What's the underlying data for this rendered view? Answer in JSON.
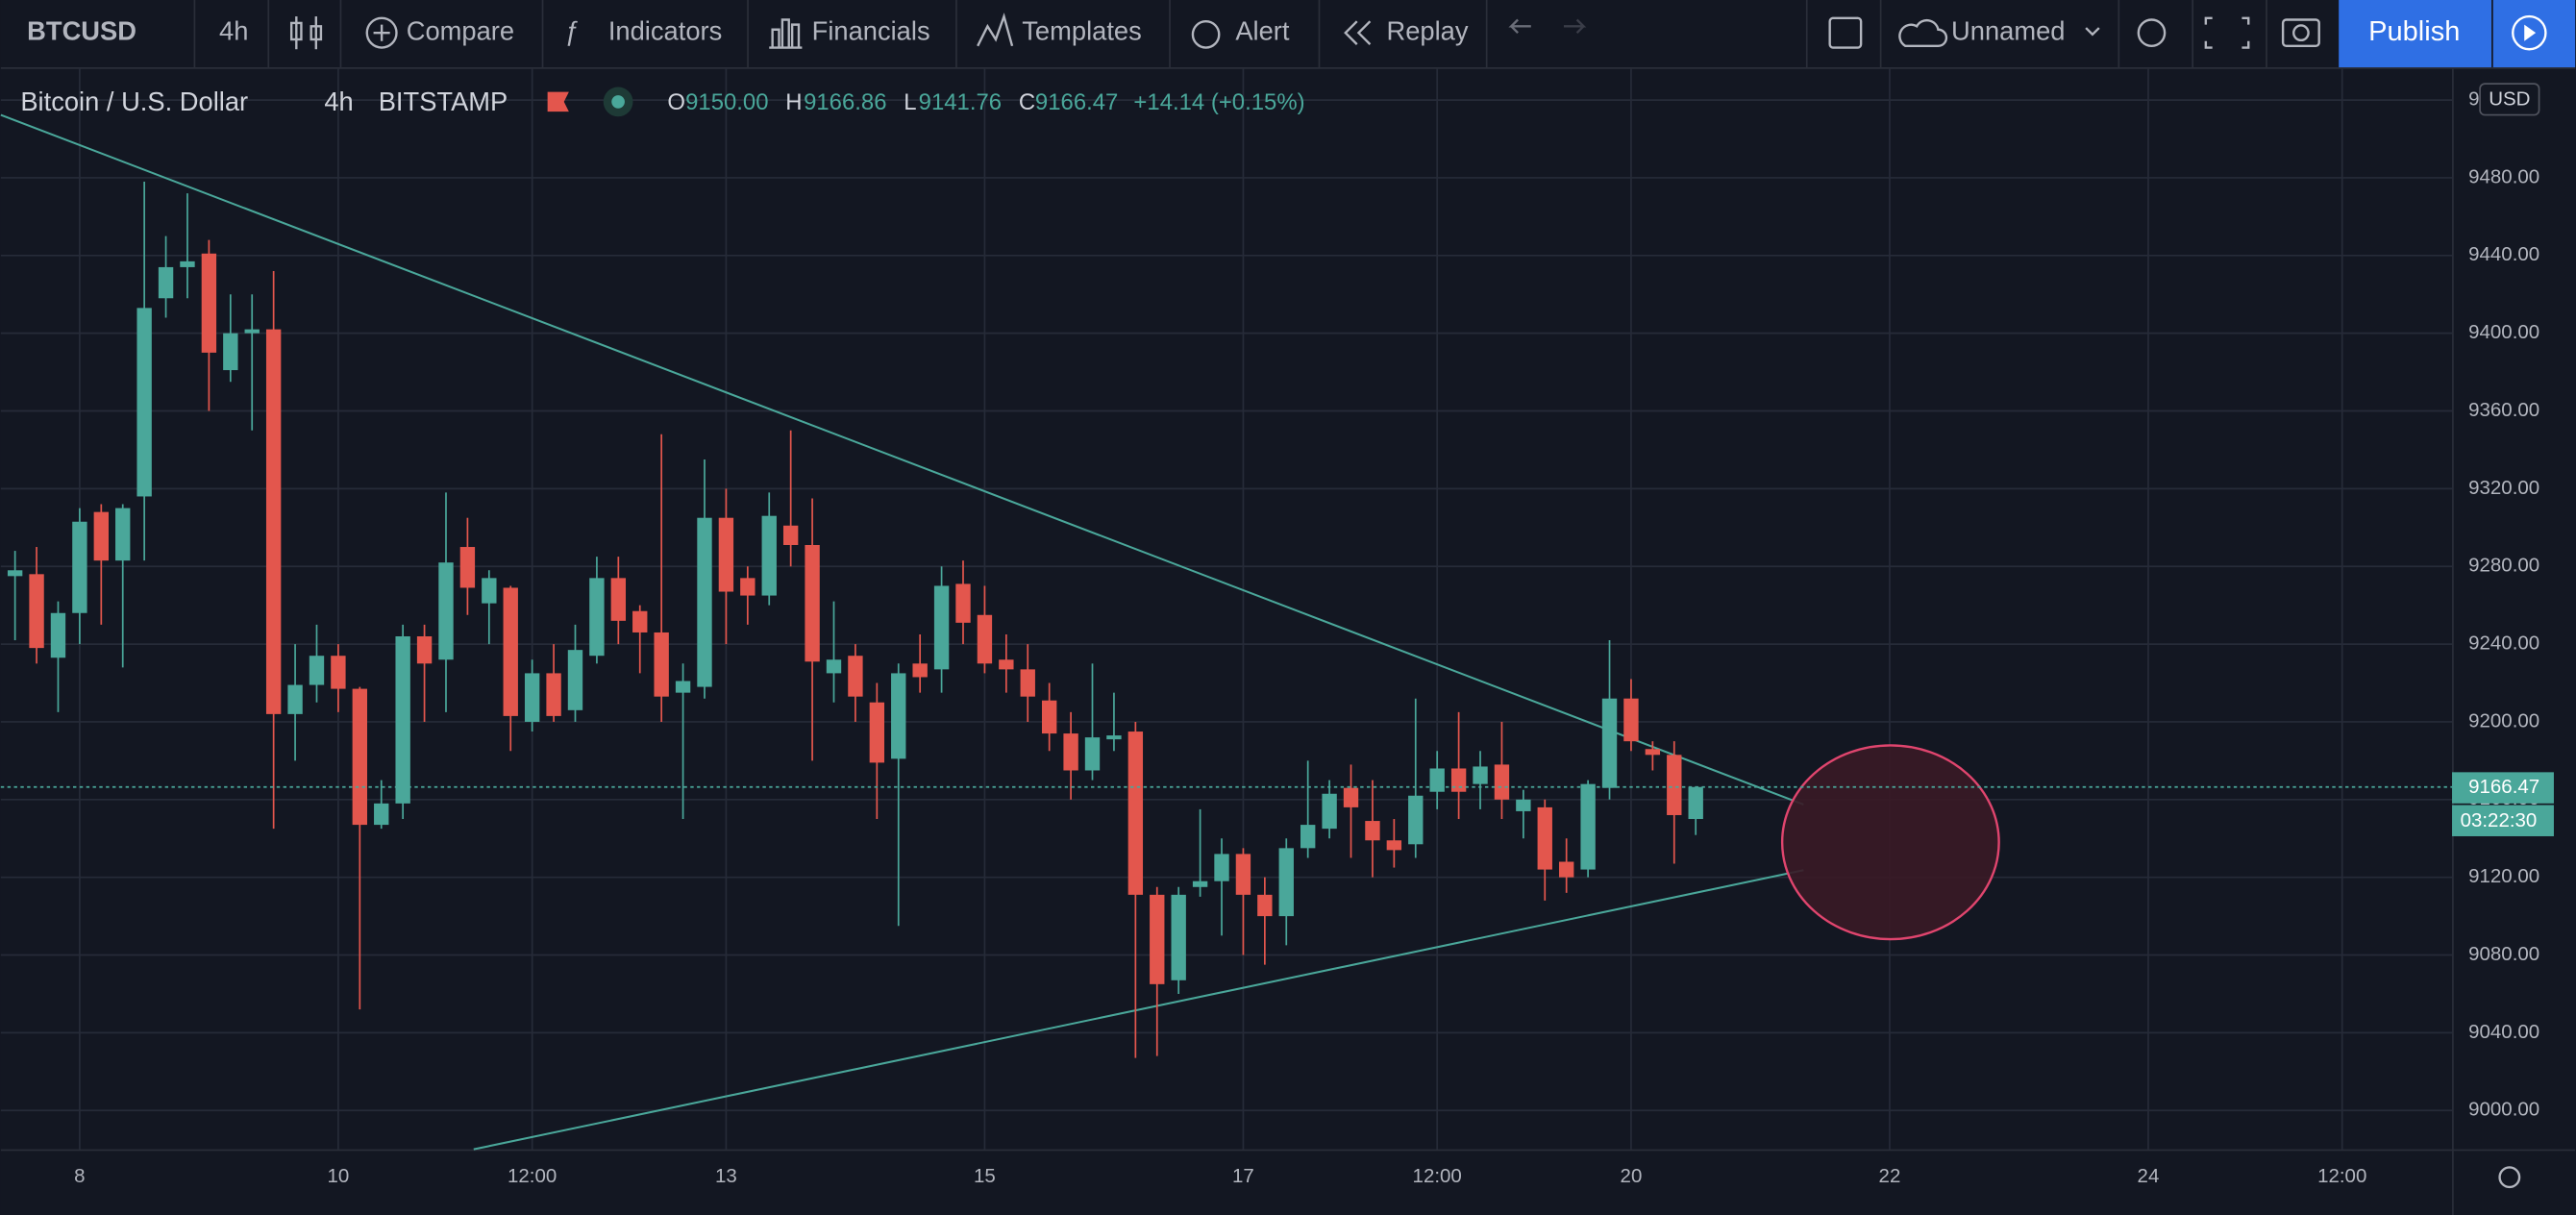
{
  "toolbar": {
    "symbol": "BTCUSD",
    "interval": "4h",
    "items": [
      "Compare",
      "Indicators",
      "Financials",
      "Templates",
      "Alert",
      "Replay"
    ],
    "layout_name": "Unnamed",
    "publish": "Publish"
  },
  "header": {
    "name": "Bitcoin / U.S. Dollar",
    "interval": "4h",
    "exchange": "BITSTAMP",
    "ohlc": [
      {
        "label": "O",
        "value": "9150.00"
      },
      {
        "label": "H",
        "value": "9166.86"
      },
      {
        "label": "L",
        "value": "9141.76"
      },
      {
        "label": "C",
        "value": "9166.47"
      }
    ],
    "change": "+14.14 (+0.15%)"
  },
  "chart_data": {
    "type": "candlestick",
    "currency": "USD",
    "countdown": "03:22:30",
    "up_color": "#4aa79a",
    "down_color": "#e3564d",
    "grid": true,
    "xlim": [
      7.39,
      26.35
    ],
    "xticks": [
      8,
      10,
      {
        "value": 11.5,
        "label": "12:00"
      },
      13,
      15,
      17,
      {
        "value": 18.5,
        "label": "12:00"
      },
      20,
      22,
      24,
      {
        "value": 25.5,
        "label": "12:00"
      }
    ],
    "ylim": [
      8980,
      9536
    ],
    "yticks": [
      {
        "value": 9000,
        "label": "9000.00"
      },
      {
        "value": 9040,
        "label": "9040.00"
      },
      {
        "value": 9080,
        "label": "9080.00"
      },
      {
        "value": 9120,
        "label": "9120.00"
      },
      {
        "value": 9160,
        "label": "9160.00"
      },
      {
        "value": 9200,
        "label": "9200.00"
      },
      {
        "value": 9240,
        "label": "9240.00"
      },
      {
        "value": 9280,
        "label": "9280.00"
      },
      {
        "value": 9320,
        "label": "9320.00"
      },
      {
        "value": 9360,
        "label": "9360.00"
      },
      {
        "value": 9400,
        "label": "9400.00"
      },
      {
        "value": 9440,
        "label": "9440.00"
      },
      {
        "value": 9480,
        "label": "9480.00"
      },
      {
        "value": 9520,
        "label": "9520.00"
      }
    ],
    "x": [
      7.5,
      7.6667,
      7.8333,
      8,
      8.1667,
      8.3333,
      8.5,
      8.6667,
      8.8333,
      9,
      9.1667,
      9.3333,
      9.5,
      9.6667,
      9.8333,
      10,
      10.1667,
      10.3333,
      10.5,
      10.6667,
      10.8333,
      11,
      11.1667,
      11.3333,
      11.5,
      11.6667,
      11.8333,
      12,
      12.1667,
      12.3333,
      12.5,
      12.6667,
      12.8333,
      13,
      13.1667,
      13.3333,
      13.5,
      13.6667,
      13.8333,
      14,
      14.1667,
      14.3333,
      14.5,
      14.6667,
      14.8333,
      15,
      15.1667,
      15.3333,
      15.5,
      15.6667,
      15.8333,
      16,
      16.1667,
      16.3333,
      16.5,
      16.6667,
      16.8333,
      17,
      17.1667,
      17.3333,
      17.5,
      17.6667,
      17.8333,
      18,
      18.1667,
      18.3333,
      18.5,
      18.6667,
      18.8333,
      19,
      19.1667,
      19.3333,
      19.5,
      19.6667,
      19.8333,
      20,
      20.1667,
      20.3333,
      20.5
    ],
    "open": [
      9275,
      9276,
      9233,
      9256,
      9308,
      9283,
      9316,
      9418,
      9434,
      9441,
      9381,
      9400,
      9402,
      9204,
      9219,
      9234,
      9217,
      9147,
      9158,
      9244,
      9232,
      9290,
      9261,
      9269,
      9200,
      9225,
      9206,
      9234,
      9274,
      9257,
      9246,
      9215,
      9218,
      9305,
      9274,
      9265,
      9301,
      9291,
      9225,
      9234,
      9210,
      9181,
      9230,
      9227,
      9271,
      9255,
      9232,
      9227,
      9211,
      9194,
      9175,
      9191,
      9195,
      9111,
      9067,
      9115,
      9118,
      9132,
      9111,
      9100,
      9135,
      9145,
      9166,
      9149,
      9139,
      9137,
      9164,
      9176,
      9168,
      9178,
      9154,
      9156,
      9128,
      9124,
      9166,
      9212,
      9186,
      9183,
      9150.0
    ],
    "high": [
      9288,
      9290,
      9262,
      9310,
      9312,
      9312,
      9478,
      9450,
      9472,
      9448,
      9420,
      9420,
      9432,
      9240,
      9250,
      9240,
      9218,
      9170,
      9250,
      9250,
      9318,
      9305,
      9278,
      9270,
      9232,
      9240,
      9250,
      9285,
      9285,
      9260,
      9348,
      9230,
      9335,
      9320,
      9280,
      9318,
      9350,
      9315,
      9262,
      9240,
      9220,
      9230,
      9245,
      9280,
      9283,
      9270,
      9245,
      9240,
      9220,
      9205,
      9230,
      9215,
      9200,
      9115,
      9115,
      9155,
      9140,
      9135,
      9120,
      9140,
      9180,
      9170,
      9178,
      9170,
      9150,
      9212,
      9185,
      9205,
      9185,
      9200,
      9165,
      9160,
      9140,
      9170,
      9242,
      9222,
      9190,
      9190,
      9166.86
    ],
    "low": [
      9242,
      9230,
      9205,
      9240,
      9250,
      9228,
      9283,
      9408,
      9418,
      9360,
      9375,
      9350,
      9145,
      9180,
      9210,
      9205,
      9052,
      9145,
      9150,
      9200,
      9205,
      9255,
      9240,
      9185,
      9195,
      9200,
      9200,
      9230,
      9240,
      9225,
      9200,
      9150,
      9212,
      9240,
      9250,
      9260,
      9280,
      9180,
      9210,
      9200,
      9150,
      9095,
      9215,
      9215,
      9240,
      9225,
      9215,
      9200,
      9185,
      9160,
      9170,
      9185,
      9027,
      9028,
      9060,
      9110,
      9090,
      9080,
      9075,
      9085,
      9130,
      9140,
      9130,
      9120,
      9125,
      9130,
      9155,
      9150,
      9155,
      9150,
      9140,
      9108,
      9112,
      9120,
      9160,
      9185,
      9175,
      9127,
      9141.76
    ],
    "close": [
      9278,
      9238,
      9256,
      9303,
      9283,
      9310,
      9413,
      9434,
      9437,
      9390,
      9400,
      9402,
      9204,
      9219,
      9234,
      9217,
      9147,
      9158,
      9244,
      9230,
      9282,
      9269,
      9274,
      9203,
      9225,
      9203,
      9237,
      9274,
      9252,
      9246,
      9213,
      9221,
      9305,
      9267,
      9265,
      9306,
      9291,
      9231,
      9232,
      9213,
      9179,
      9225,
      9223,
      9270,
      9251,
      9230,
      9227,
      9213,
      9194,
      9175,
      9192,
      9193,
      9111,
      9065,
      9111,
      9118,
      9132,
      9111,
      9100,
      9135,
      9147,
      9163,
      9156,
      9139,
      9134,
      9162,
      9176,
      9164,
      9177,
      9160,
      9160,
      9124,
      9120,
      9168,
      9212,
      9190,
      9183,
      9152,
      9166.47
    ]
  }
}
